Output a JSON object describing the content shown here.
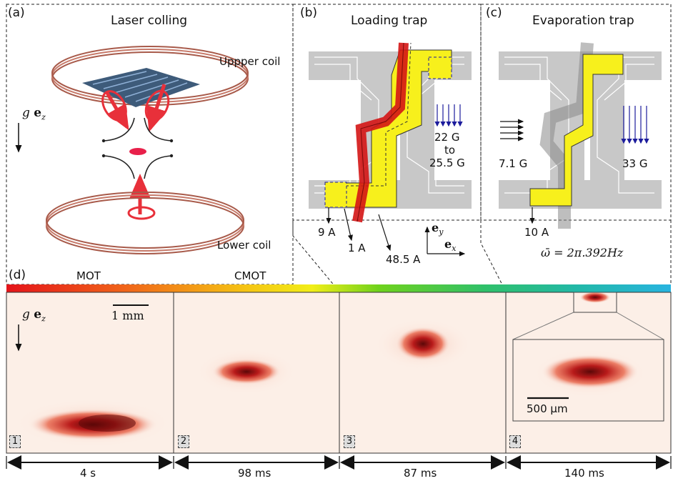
{
  "panel_a": {
    "label": "(a)",
    "title": "Laser colling",
    "upper_coil": "Uppper coil",
    "lower_coil": "Lower coil",
    "gravity_g": "g",
    "gravity_vec": "e",
    "gravity_sub": "z"
  },
  "panel_b": {
    "label": "(b)",
    "title": "Loading trap",
    "field_1": "22 G",
    "field_2": "to",
    "field_3": "25.5 G",
    "current_1": "9 A",
    "current_2": "1 A",
    "current_3": "48.5 A",
    "axis_y": "e",
    "axis_y_sub": "y",
    "axis_x": "e",
    "axis_x_sub": "x"
  },
  "panel_c": {
    "label": "(c)",
    "title": "Evaporation trap",
    "field_left": "7.1 G",
    "field_right": "33 G",
    "current": "10 A",
    "omega": "ω̄ = 2π.392Hz"
  },
  "panel_d": {
    "label": "(d)",
    "stage_mot": "MOT",
    "stage_cmot": "CMOT",
    "gravity_g": "g",
    "gravity_vec": "e",
    "gravity_sub": "z",
    "scale_1mm": "1 mm",
    "scale_500um": "500 µm",
    "frames": [
      "1",
      "2",
      "3",
      "4"
    ],
    "durations": [
      "4 s",
      "98 ms",
      "87 ms",
      "140 ms"
    ]
  },
  "colors": {
    "wire_yellow": "#f7f01c",
    "wire_red": "#d41515",
    "chip_gray": "#c8c8c8",
    "cloud_red": "#c4171a",
    "cell_bg": "#fcefe7",
    "field_arrow_blue": "#1c1c9c"
  }
}
